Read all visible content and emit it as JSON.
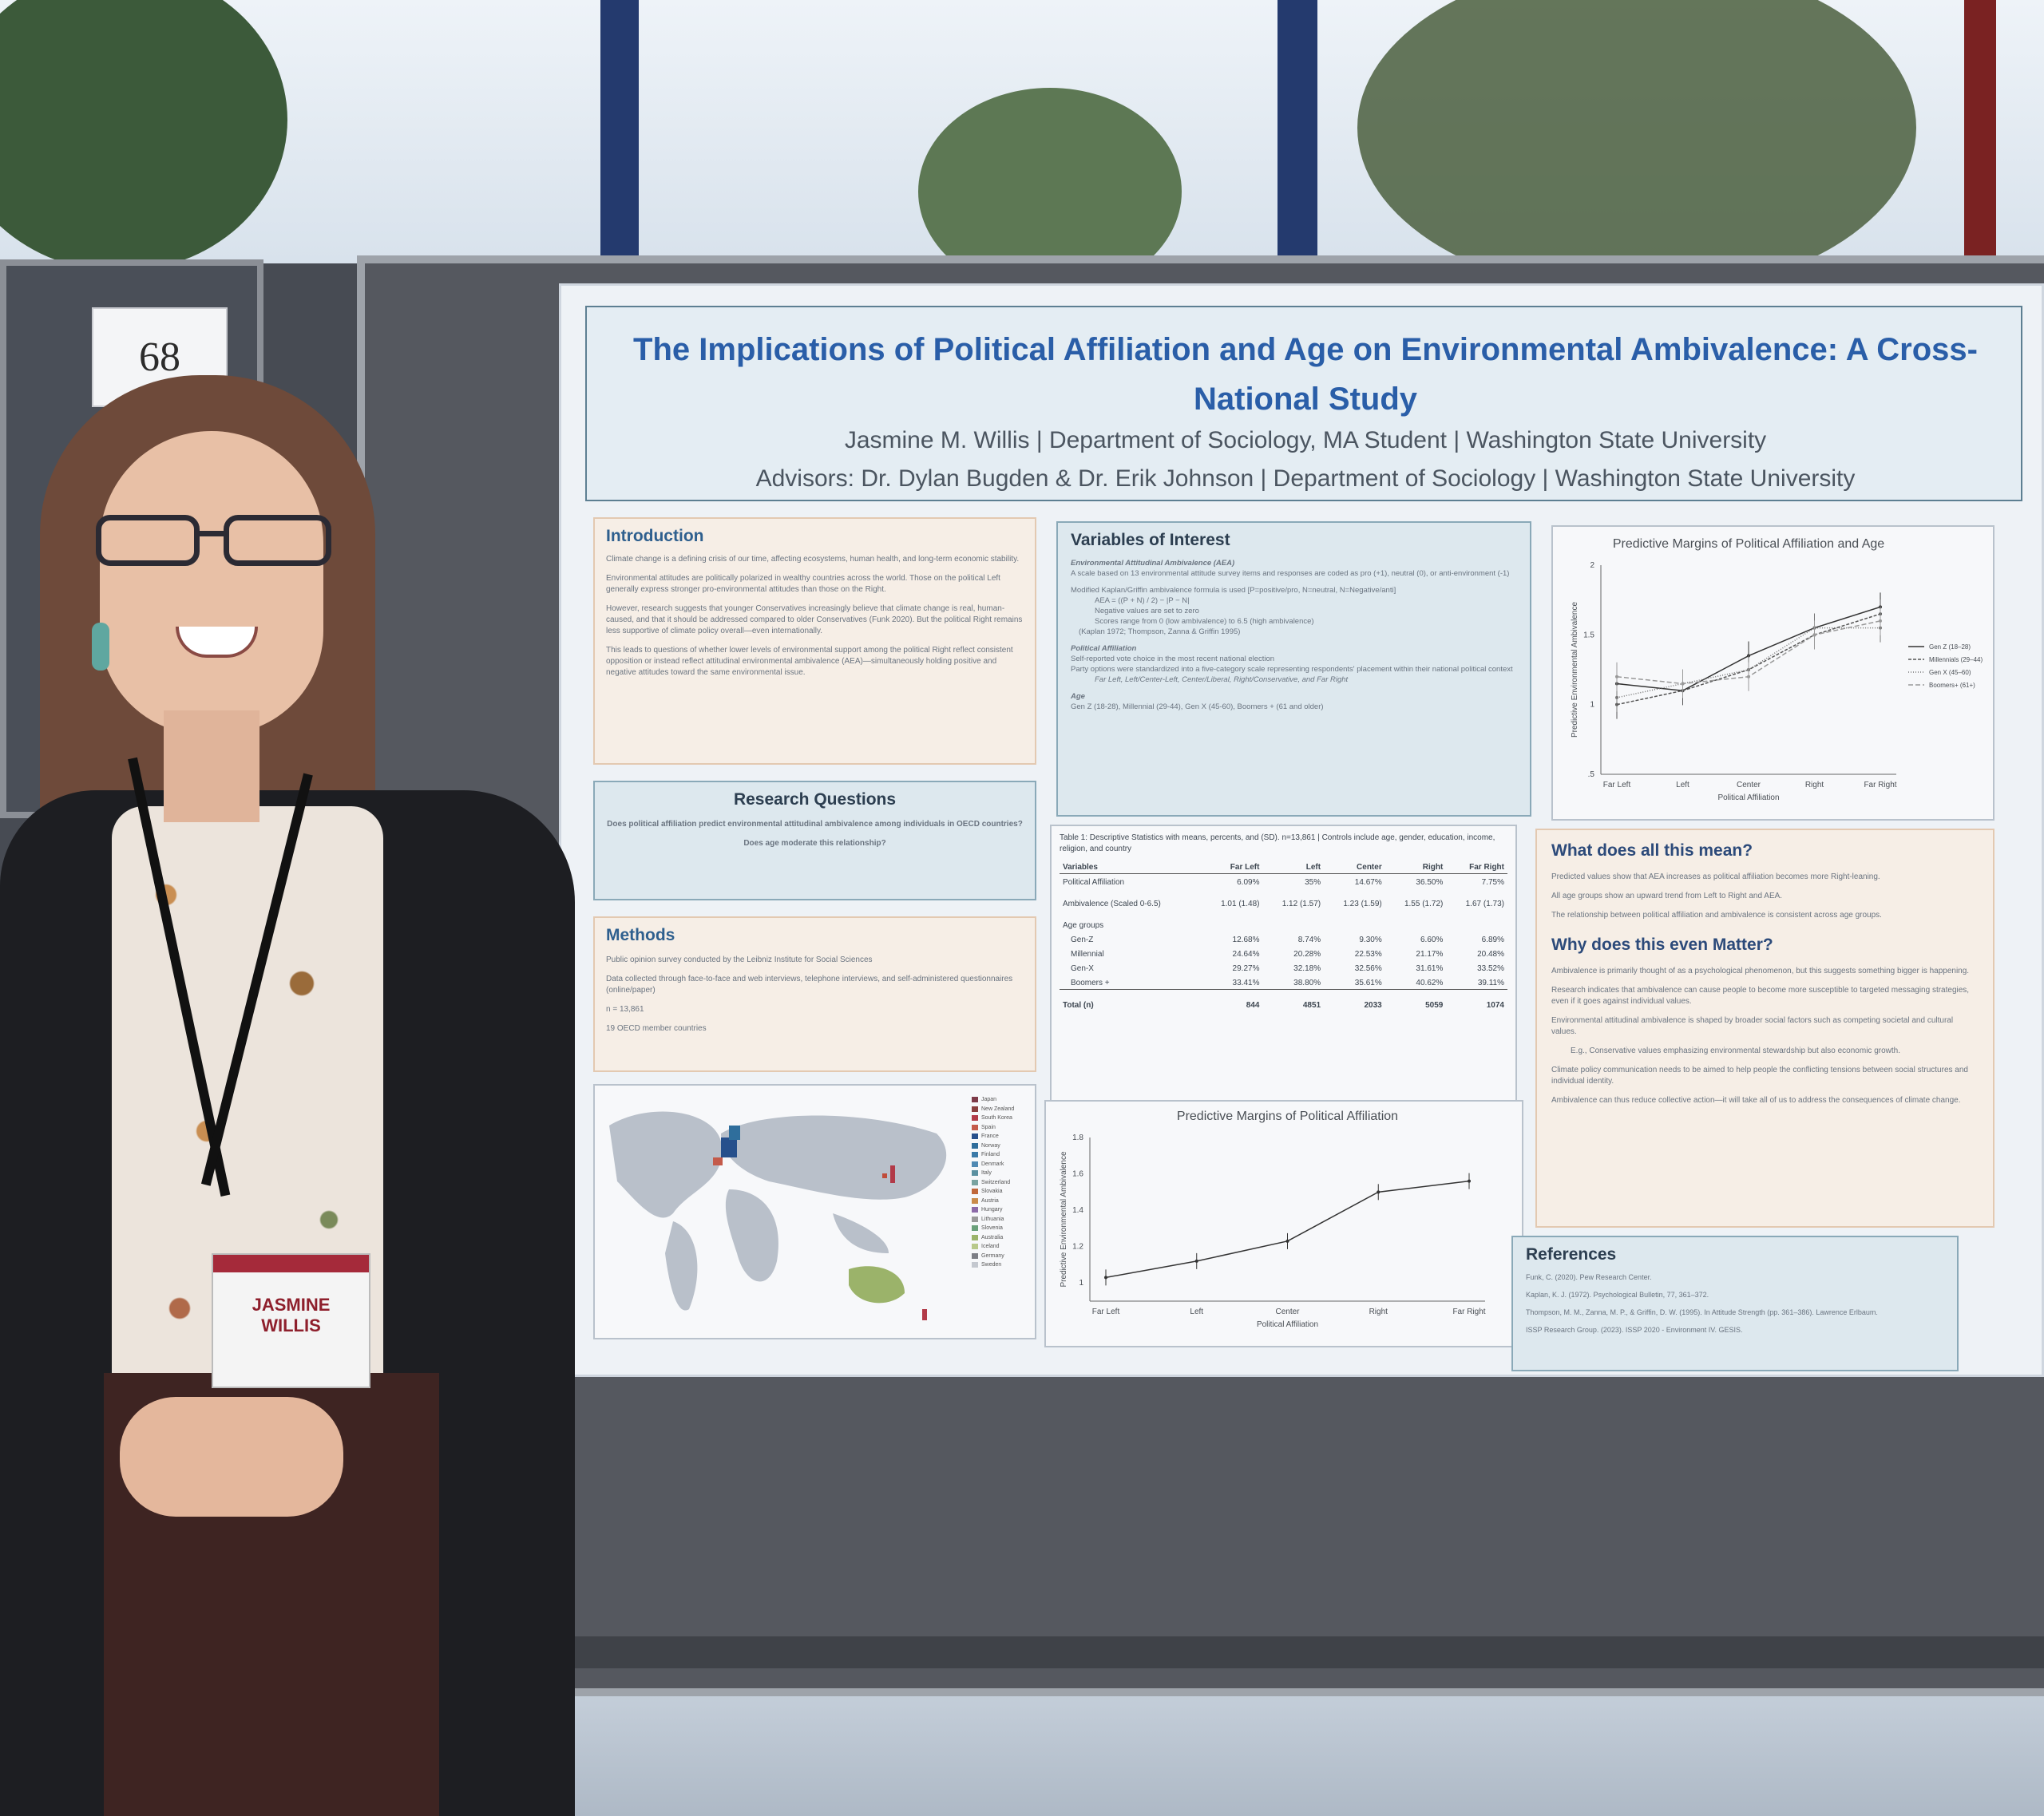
{
  "booth_number": "68",
  "name_badge": {
    "name": "JASMINE WILLIS"
  },
  "poster": {
    "title": "The Implications of Political Affiliation and Age on Environmental Ambivalence: A Cross-National Study",
    "author_line": "Jasmine M. Willis | Department of Sociology, MA Student | Washington State University",
    "advisors_line": "Advisors: Dr. Dylan Bugden & Dr. Erik Johnson | Department of Sociology | Washington State University",
    "introduction": {
      "heading": "Introduction",
      "bullets": [
        "Climate change is a defining crisis of our time, affecting ecosystems, human health, and long-term economic stability.",
        "Environmental attitudes are politically polarized in wealthy countries across the world. Those on the political Left generally express stronger pro-environmental attitudes than those on the Right.",
        "However, research suggests that younger Conservatives increasingly believe that climate change is real, human-caused, and that it should be addressed compared to older Conservatives (Funk 2020). But the political Right remains less supportive of climate policy overall—even internationally.",
        "This leads to questions of whether lower levels of environmental support among the political Right reflect consistent opposition or instead reflect attitudinal environmental ambivalence (AEA)—simultaneously holding positive and negative attitudes toward the same environmental issue."
      ]
    },
    "research_questions": {
      "heading": "Research Questions",
      "q1": "Does political affiliation predict environmental attitudinal ambivalence among individuals in OECD countries?",
      "q2": "Does age moderate this relationship?"
    },
    "methods": {
      "heading": "Methods",
      "bullets": [
        "Public opinion survey conducted by the Leibniz Institute for Social Sciences",
        "Data collected through face-to-face and web interviews, telephone interviews, and self-administered questionnaires (online/paper)",
        "n = 13,861",
        "19 OECD member countries"
      ]
    },
    "variables": {
      "heading": "Variables of Interest",
      "aea_heading": "Environmental Attitudinal Ambivalence (AEA)",
      "aea_lines": [
        "A scale based on 13 environmental attitude survey items and responses are coded as pro (+1), neutral (0), or anti-environment (-1)",
        "Modified Kaplan/Griffin ambivalence formula is used [P=positive/pro, N=neutral, N=Negative/anti]",
        "AEA = ((P + N) / 2) − |P − N|",
        "Negative values are set to zero",
        "Scores range from 0 (low ambivalence) to 6.5 (high ambivalence)",
        "(Kaplan 1972; Thompson, Zanna & Griffin 1995)"
      ],
      "pa_heading": "Political Affiliation",
      "pa_lines": [
        "Self-reported vote choice in the most recent national election",
        "Party options were standardized into a five-category scale representing respondents' placement within their national political context",
        "Far Left, Left/Center-Left, Center/Liberal, Right/Conservative, and Far Right"
      ],
      "age_heading": "Age",
      "age_line": "Gen Z (18-28), Millennial (29-44), Gen X (45-60), Boomers + (61 and older)"
    },
    "table": {
      "caption": "Table 1: Descriptive Statistics with means, percents, and (SD). n=13,861 | Controls include age, gender, education, income, religion, and country",
      "headers": [
        "Variables",
        "Far Left",
        "Left",
        "Center",
        "Right",
        "Far Right"
      ],
      "rows": [
        [
          "Political Affiliation",
          "6.09%",
          "35%",
          "14.67%",
          "36.50%",
          "7.75%"
        ],
        [
          "Ambivalence (Scaled 0-6.5)",
          "1.01 (1.48)",
          "1.12 (1.57)",
          "1.23 (1.59)",
          "1.55 (1.72)",
          "1.67 (1.73)"
        ],
        [
          "Age groups",
          "",
          "",
          "",
          "",
          ""
        ],
        [
          "Gen-Z",
          "12.68%",
          "8.74%",
          "9.30%",
          "6.60%",
          "6.89%"
        ],
        [
          "Millennial",
          "24.64%",
          "20.28%",
          "22.53%",
          "21.17%",
          "20.48%"
        ],
        [
          "Gen-X",
          "29.27%",
          "32.18%",
          "32.56%",
          "31.61%",
          "33.52%"
        ],
        [
          "Boomers +",
          "33.41%",
          "38.80%",
          "35.61%",
          "40.62%",
          "39.11%"
        ],
        [
          "Total (n)",
          "844",
          "4851",
          "2033",
          "5059",
          "1074"
        ]
      ]
    },
    "meaning": {
      "heading": "What does all this mean?",
      "bullets": [
        "Predicted values show that AEA increases as political affiliation becomes more Right-leaning.",
        "All age groups show an upward trend from Left to Right and AEA.",
        "The relationship between political affiliation and ambivalence is consistent across age groups."
      ]
    },
    "matter": {
      "heading": "Why does this even Matter?",
      "bullets": [
        "Ambivalence is primarily thought of as a psychological phenomenon, but this suggests something bigger is happening.",
        "Research indicates that ambivalence can cause people to become more susceptible to targeted messaging strategies, even if it goes against individual values.",
        "Environmental attitudinal ambivalence is shaped by broader social factors such as competing societal and cultural values.",
        "E.g., Conservative values emphasizing environmental stewardship but also economic growth.",
        "Climate policy communication needs to be aimed to help people the conflicting tensions between social structures and individual identity.",
        "Ambivalence can thus reduce collective action—it will take all of us to address the consequences of climate change."
      ]
    },
    "references": {
      "heading": "References",
      "items": [
        "Funk, C. (2020). Pew Research Center.",
        "Kaplan, K. J. (1972). Psychological Bulletin, 77, 361–372.",
        "Thompson, M. M., Zanna, M. P., & Griffin, D. W. (1995). In Attitude Strength (pp. 361–386). Lawrence Erlbaum.",
        "ISSP Research Group. (2023). ISSP 2020 - Environment IV. GESIS."
      ]
    },
    "map_legend": [
      "Japan",
      "New Zealand",
      "South Korea",
      "Spain",
      "France",
      "Norway",
      "Finland",
      "Denmark",
      "Italy",
      "Switzerland",
      "Slovakia",
      "Austria",
      "Hungary",
      "Lithuania",
      "Slovenia",
      "Australia",
      "Iceland",
      "Germany",
      "Sweden"
    ]
  },
  "chart_data": [
    {
      "type": "line",
      "title": "Predictive Margins of Political Affiliation and Age",
      "xlabel": "Political Affiliation",
      "ylabel": "Predictive Environmental Ambivalence",
      "categories": [
        "Far Left",
        "Left",
        "Center",
        "Right",
        "Far Right"
      ],
      "ylim": [
        0.5,
        2
      ],
      "yticks": [
        "2",
        "1.5",
        "1",
        ".5"
      ],
      "legend_position": "right",
      "series": [
        {
          "name": "Gen Z (18–28)",
          "values": [
            1.15,
            1.1,
            1.35,
            1.55,
            1.7
          ]
        },
        {
          "name": "Millennials (29–44)",
          "values": [
            1.0,
            1.1,
            1.25,
            1.5,
            1.65
          ]
        },
        {
          "name": "Gen X (45–60)",
          "values": [
            1.05,
            1.15,
            1.25,
            1.55,
            1.55
          ]
        },
        {
          "name": "Boomers+ (61+)",
          "values": [
            1.2,
            1.15,
            1.2,
            1.5,
            1.6
          ]
        }
      ]
    },
    {
      "type": "line",
      "title": "Predictive Margins of Political Affiliation",
      "xlabel": "Political Affiliation",
      "ylabel": "Predictive Environmental Ambivalence",
      "categories": [
        "Far Left",
        "Left",
        "Center",
        "Right",
        "Far Right"
      ],
      "ylim": [
        0.9,
        1.8
      ],
      "yticks": [
        "1.8",
        "1.6",
        "1.4",
        "1.2",
        "1"
      ],
      "series": [
        {
          "values": [
            1.03,
            1.12,
            1.23,
            1.5,
            1.56
          ]
        }
      ]
    }
  ],
  "colors": {
    "title_blue": "#2a5ea8",
    "panel_orange": "#f6eee6",
    "panel_blue": "#dde8ee",
    "map_highlight": "#27508c",
    "australia": "#9bb36a"
  }
}
